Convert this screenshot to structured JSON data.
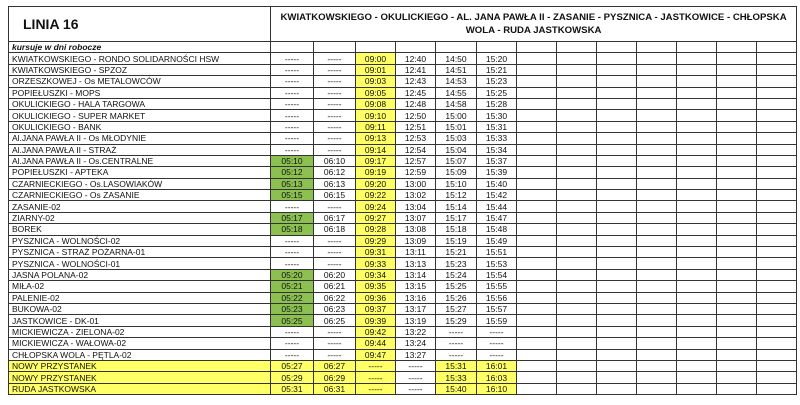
{
  "header": {
    "title": "LINIA 16",
    "route": "KWIATKOWSKIEGO - OKULICKIEGO - AL. JANA PAWŁA II - ZASANIE - PYSZNICA - JASTKOWICE - CHŁOPSKA WOLA - RUDA JASTKOWSKA",
    "subtitle": "kursuje w dni robocze"
  },
  "table": {
    "rows": [
      [
        "KWIATKOWSKIEGO - RONDO SOLIDARNOŚCI HSW",
        "-----",
        "-----",
        "09:00",
        "12:40",
        "14:50",
        "15:20"
      ],
      [
        "KWIATKOWSKIEGO - SPZOZ",
        "-----",
        "-----",
        "09:01",
        "12:41",
        "14:51",
        "15:21"
      ],
      [
        "ORZESZKOWEJ - Os METALOWCÓW",
        "-----",
        "-----",
        "09:03",
        "12:43",
        "14:53",
        "15:23"
      ],
      [
        "POPIEŁUSZKI - MOPS",
        "-----",
        "-----",
        "09:05",
        "12:45",
        "14:55",
        "15:25"
      ],
      [
        "OKULICKIEGO - HALA TARGOWA",
        "-----",
        "-----",
        "09:08",
        "12:48",
        "14:58",
        "15:28"
      ],
      [
        "OKULICKIEGO - SUPER MARKET",
        "-----",
        "-----",
        "09:10",
        "12:50",
        "15:00",
        "15:30"
      ],
      [
        "OKULICKIEGO - BANK",
        "-----",
        "-----",
        "09:11",
        "12:51",
        "15:01",
        "15:31"
      ],
      [
        "Al.JANA PAWŁA II - Os MŁODYNIE",
        "-----",
        "-----",
        "09:13",
        "12:53",
        "15:03",
        "15:33"
      ],
      [
        "Al.JANA PAWŁA II - STRAŻ",
        "-----",
        "-----",
        "09:14",
        "12:54",
        "15:04",
        "15:34"
      ],
      [
        "Al.JANA PAWŁA II - Os.CENTRALNE",
        "05:10",
        "06:10",
        "09:17",
        "12:57",
        "15:07",
        "15:37"
      ],
      [
        "POPIEŁUSZKI - APTEKA",
        "05:12",
        "06:12",
        "09:19",
        "12:59",
        "15:09",
        "15:39"
      ],
      [
        "CZARNIECKIEGO - Os.LASOWIAKÓW",
        "05:13",
        "06:13",
        "09:20",
        "13:00",
        "15:10",
        "15:40"
      ],
      [
        "CZARNIECKIEGO - Os ZASANIE",
        "05:15",
        "06:15",
        "09:22",
        "13:02",
        "15:12",
        "15:42"
      ],
      [
        "ZASANIE-02",
        "-----",
        "-----",
        "09:24",
        "13:04",
        "15:14",
        "15:44"
      ],
      [
        "ZIARNY-02",
        "05:17",
        "06:17",
        "09:27",
        "13:07",
        "15:17",
        "15:47"
      ],
      [
        "BOREK",
        "05:18",
        "06:18",
        "09:28",
        "13:08",
        "15:18",
        "15:48"
      ],
      [
        "PYSZNICA - WOLNOŚCI-02",
        "-----",
        "-----",
        "09:29",
        "13:09",
        "15:19",
        "15:49"
      ],
      [
        "PYSZNICA - STRAŻ POŻARNA-01",
        "-----",
        "-----",
        "09:31",
        "13:11",
        "15:21",
        "15:51"
      ],
      [
        "PYSZNICA - WOLNOŚCI-01",
        "-----",
        "-----",
        "09:33",
        "13:13",
        "15:23",
        "15:53"
      ],
      [
        "JASNA POLANA-02",
        "05:20",
        "06:20",
        "09:34",
        "13:14",
        "15:24",
        "15:54"
      ],
      [
        "MIŁA-02",
        "05:21",
        "06:21",
        "09:35",
        "13:15",
        "15:25",
        "15:55"
      ],
      [
        "PALENIE-02",
        "05:22",
        "06:22",
        "09:36",
        "13:16",
        "15:26",
        "15:56"
      ],
      [
        "BUKOWA-02",
        "05:23",
        "06:23",
        "09:37",
        "13:17",
        "15:27",
        "15:57"
      ],
      [
        "JASTKOWICE - DK-01",
        "05:25",
        "06:25",
        "09:39",
        "13:19",
        "15:29",
        "15:59"
      ],
      [
        "MICKIEWICZA - ZIELONA-02",
        "-----",
        "-----",
        "09:42",
        "13:22",
        "-----",
        "-----"
      ],
      [
        "MICKIEWICZA - WAŁOWA-02",
        "-----",
        "-----",
        "09:44",
        "13:24",
        "-----",
        "-----"
      ],
      [
        "CHŁOPSKA WOLA - PĘTLA-02",
        "-----",
        "-----",
        "09:47",
        "13:27",
        "-----",
        "-----"
      ],
      [
        "NOWY PRZYSTANEK",
        "05:27",
        "06:27",
        "-----",
        "-----",
        "15:31",
        "16:01"
      ],
      [
        "NOWY PRZYSTANEK",
        "05:29",
        "06:29",
        "-----",
        "-----",
        "15:33",
        "16:03"
      ],
      [
        "RUDA JASTKOWSKA",
        "05:31",
        "06:31",
        "-----",
        "-----",
        "15:40",
        "16:10"
      ]
    ]
  }
}
